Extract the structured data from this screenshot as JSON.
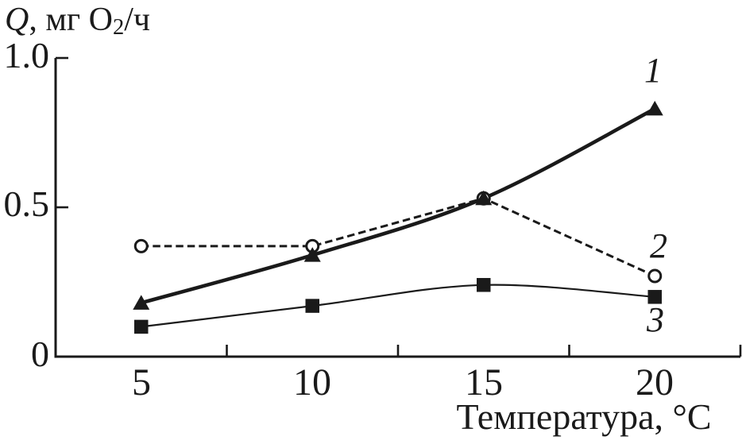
{
  "chart_data": {
    "type": "line",
    "title": "",
    "xlabel": "Температура, °C",
    "ylabel": "Q, мг O₂/ч",
    "ylabel_parts": {
      "q": "Q",
      "mid": ", мг O",
      "sub": "2",
      "end": "/ч"
    },
    "x": [
      5,
      10,
      15,
      20
    ],
    "series": [
      {
        "name": "1",
        "label": "1",
        "marker": "triangle-filled",
        "line_style": "solid-thick",
        "values": [
          0.18,
          0.34,
          0.53,
          0.83
        ]
      },
      {
        "name": "2",
        "label": "2",
        "marker": "circle-open",
        "line_style": "dashed",
        "values": [
          0.37,
          0.37,
          0.53,
          0.27
        ]
      },
      {
        "name": "3",
        "label": "3",
        "marker": "square-filled",
        "line_style": "solid-thin",
        "values": [
          0.1,
          0.17,
          0.24,
          0.2
        ]
      }
    ],
    "xlim": [
      2.5,
      22.5
    ],
    "ylim": [
      0,
      1.0
    ],
    "xtick_labels": [
      "5",
      "10",
      "15",
      "20"
    ],
    "xtick_label_values": [
      5,
      10,
      15,
      20
    ],
    "xtick_mark_values": [
      7.5,
      12.5,
      17.5,
      22.5
    ],
    "ytick_labels": [
      "1.0",
      "0.5",
      "0"
    ],
    "ytick_label_values": [
      1.0,
      0.5,
      0
    ],
    "ytick_mark_values": [
      1.0,
      0.5
    ],
    "grid": false,
    "legend_position": "inline-labels-right",
    "color": "#1a1a1a",
    "background": "#ffffff"
  }
}
